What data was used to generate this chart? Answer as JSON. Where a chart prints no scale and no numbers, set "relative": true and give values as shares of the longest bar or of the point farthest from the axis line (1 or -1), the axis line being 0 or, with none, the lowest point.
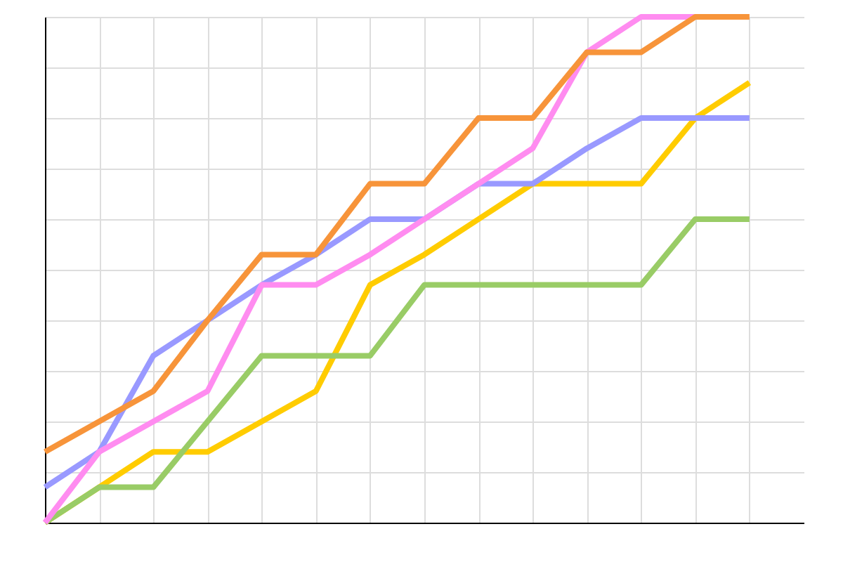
{
  "chart_data": {
    "type": "line",
    "relative": true,
    "grid": true,
    "tick_labels": false,
    "marker": "none",
    "line_style": "solid",
    "categories": [
      null,
      null,
      null,
      null,
      null,
      null,
      null,
      null,
      null,
      null,
      null,
      null,
      null,
      null
    ],
    "series": [
      {
        "color": "#ffcc00",
        "values": [
          0,
          0.07,
          0.14,
          0.14,
          0.2,
          0.26,
          0.47,
          0.53,
          0.6,
          0.67,
          0.67,
          0.67,
          0.8,
          0.87
        ]
      },
      {
        "color": "#99cc66",
        "values": [
          0,
          0.07,
          0.07,
          0.2,
          0.33,
          0.33,
          0.33,
          0.47,
          0.47,
          0.47,
          0.47,
          0.47,
          0.6,
          0.6
        ]
      },
      {
        "color": "#9999ff",
        "values": [
          0.07,
          0.14,
          0.33,
          0.4,
          0.47,
          0.53,
          0.6,
          0.6,
          0.67,
          0.67,
          0.74,
          0.8,
          0.8,
          0.8
        ]
      },
      {
        "color": "#ff8cf0",
        "values": [
          0,
          0.14,
          0.2,
          0.26,
          0.47,
          0.47,
          0.53,
          0.6,
          0.67,
          0.74,
          0.93,
          1,
          1,
          null
        ]
      },
      {
        "color": "#f7943a",
        "values": [
          0.14,
          0.2,
          0.26,
          0.4,
          0.53,
          0.53,
          0.67,
          0.67,
          0.8,
          0.8,
          0.93,
          0.93,
          1,
          1
        ]
      }
    ]
  }
}
